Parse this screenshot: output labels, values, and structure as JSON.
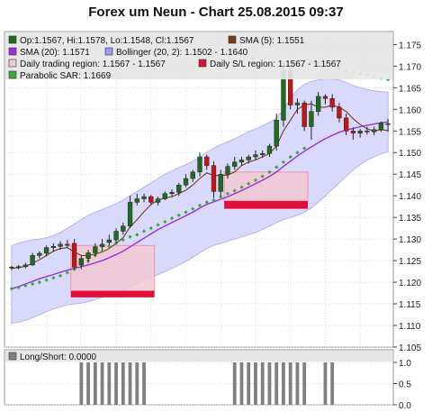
{
  "chart_data": {
    "type": "candlestick",
    "title": "Forex um Neun - Chart 25.08.2015 09:37",
    "main": {
      "ylim": [
        1.105,
        1.178
      ],
      "yticks": [
        "1.105",
        "1.110",
        "1.115",
        "1.120",
        "1.125",
        "1.130",
        "1.135",
        "1.140",
        "1.145",
        "1.150",
        "1.155",
        "1.160",
        "1.165",
        "1.170",
        "1.175"
      ],
      "grid": true,
      "legend_position": "top-left",
      "legend": [
        {
          "text": "Op:1.1567, Hi:1.1578, Lo:1.1548, Cl:1.1567",
          "color": "#1d6d1d",
          "icon": "square"
        },
        {
          "text": "SMA (5): 1.1551",
          "color": "#7a3b1a",
          "icon": "square"
        },
        {
          "text": "Daily trading region: 1.1567 - 1.1567",
          "color": "#f3c9d4",
          "icon": "square"
        },
        {
          "text": "Daily S/L region: 1.1567 - 1.1567",
          "color": "#e0103a",
          "icon": "square"
        },
        {
          "text": "SMA (20): 1.1571",
          "color": "#9b2fd6",
          "icon": "square"
        },
        {
          "text": "Bollinger (20, 2): 1.1502 - 1.1640",
          "color": "#9b9bf0",
          "icon": "square"
        },
        {
          "text": "Parabolic SAR: 1.1669",
          "color": "#3aa83a",
          "icon": "square"
        }
      ],
      "candles": [
        [
          1.1233,
          1.1238,
          1.1228,
          1.1235
        ],
        [
          1.1235,
          1.124,
          1.123,
          1.1236
        ],
        [
          1.1236,
          1.1245,
          1.1232,
          1.124
        ],
        [
          1.124,
          1.1268,
          1.1238,
          1.1262
        ],
        [
          1.1262,
          1.1272,
          1.1255,
          1.1267
        ],
        [
          1.1267,
          1.1285,
          1.126,
          1.128
        ],
        [
          1.128,
          1.129,
          1.127,
          1.1283
        ],
        [
          1.1283,
          1.1295,
          1.1275,
          1.1288
        ],
        [
          1.1288,
          1.1298,
          1.128,
          1.1285
        ],
        [
          1.129,
          1.13,
          1.123,
          1.1235
        ],
        [
          1.124,
          1.1262,
          1.123,
          1.1255
        ],
        [
          1.1255,
          1.1275,
          1.1245,
          1.1268
        ],
        [
          1.1268,
          1.129,
          1.126,
          1.1282
        ],
        [
          1.1282,
          1.13,
          1.1275,
          1.1288
        ],
        [
          1.1292,
          1.131,
          1.1285,
          1.1298
        ],
        [
          1.1298,
          1.1325,
          1.129,
          1.1318
        ],
        [
          1.1318,
          1.1338,
          1.131,
          1.133
        ],
        [
          1.133,
          1.14,
          1.1325,
          1.1385
        ],
        [
          1.1385,
          1.1405,
          1.1378,
          1.1393
        ],
        [
          1.1393,
          1.1405,
          1.1385,
          1.1398
        ],
        [
          1.1398,
          1.1402,
          1.1378,
          1.1385
        ],
        [
          1.1385,
          1.1398,
          1.1378,
          1.1393
        ],
        [
          1.1393,
          1.141,
          1.139,
          1.1405
        ],
        [
          1.1405,
          1.1415,
          1.1398,
          1.1408
        ],
        [
          1.1408,
          1.143,
          1.14,
          1.1425
        ],
        [
          1.1425,
          1.145,
          1.142,
          1.144
        ],
        [
          1.144,
          1.146,
          1.1432,
          1.1455
        ],
        [
          1.1455,
          1.15,
          1.1445,
          1.149
        ],
        [
          1.149,
          1.1495,
          1.146,
          1.147
        ],
        [
          1.147,
          1.148,
          1.1395,
          1.141
        ],
        [
          1.141,
          1.146,
          1.14,
          1.145
        ],
        [
          1.145,
          1.1475,
          1.144,
          1.1468
        ],
        [
          1.1468,
          1.149,
          1.146,
          1.1478
        ],
        [
          1.1478,
          1.149,
          1.147,
          1.1483
        ],
        [
          1.1483,
          1.1495,
          1.1475,
          1.149
        ],
        [
          1.149,
          1.1505,
          1.1482,
          1.1495
        ],
        [
          1.1495,
          1.1505,
          1.1488,
          1.1498
        ],
        [
          1.1498,
          1.152,
          1.149,
          1.1515
        ],
        [
          1.1515,
          1.159,
          1.1505,
          1.1575
        ],
        [
          1.1575,
          1.171,
          1.156,
          1.169
        ],
        [
          1.169,
          1.17,
          1.16,
          1.161
        ],
        [
          1.161,
          1.1625,
          1.159,
          1.1615
        ],
        [
          1.1615,
          1.162,
          1.155,
          1.156
        ],
        [
          1.156,
          1.162,
          1.153,
          1.1595
        ],
        [
          1.1595,
          1.164,
          1.1585,
          1.163
        ],
        [
          1.163,
          1.1635,
          1.1612,
          1.1625
        ],
        [
          1.1625,
          1.1635,
          1.1595,
          1.1605
        ],
        [
          1.1605,
          1.1615,
          1.157,
          1.158
        ],
        [
          1.158,
          1.159,
          1.154,
          1.155
        ],
        [
          1.155,
          1.1558,
          1.153,
          1.1545
        ],
        [
          1.1545,
          1.1555,
          1.1535,
          1.155
        ],
        [
          1.155,
          1.156,
          1.1542,
          1.1548
        ],
        [
          1.1548,
          1.156,
          1.154,
          1.1553
        ],
        [
          1.1553,
          1.1572,
          1.1548,
          1.1568
        ],
        [
          1.1567,
          1.1578,
          1.1548,
          1.1567
        ]
      ],
      "sma5": [
        1.1232,
        1.1234,
        1.1237,
        1.1244,
        1.1252,
        1.1262,
        1.1272,
        1.1278,
        1.128,
        1.127,
        1.1262,
        1.1262,
        1.1265,
        1.127,
        1.1278,
        1.129,
        1.1303,
        1.1328,
        1.1345,
        1.1363,
        1.138,
        1.139,
        1.1395,
        1.1398,
        1.1405,
        1.1413,
        1.1425,
        1.144,
        1.1453,
        1.1447,
        1.1447,
        1.1448,
        1.1455,
        1.147,
        1.1478,
        1.1483,
        1.149,
        1.1498,
        1.1515,
        1.155,
        1.1575,
        1.16,
        1.161,
        1.1613,
        1.1605,
        1.1605,
        1.161,
        1.1605,
        1.1595,
        1.1578,
        1.1565,
        1.1555,
        1.155,
        1.1553,
        1.1551
      ],
      "sma20": [
        1.1185,
        1.119,
        1.1196,
        1.1202,
        1.1208,
        1.1213,
        1.1218,
        1.1223,
        1.1228,
        1.1232,
        1.1236,
        1.124,
        1.1245,
        1.125,
        1.1257,
        1.1264,
        1.1272,
        1.1282,
        1.1292,
        1.1302,
        1.1312,
        1.1322,
        1.133,
        1.1338,
        1.1346,
        1.1354,
        1.1362,
        1.1372,
        1.138,
        1.1386,
        1.1392,
        1.1398,
        1.1405,
        1.1412,
        1.142,
        1.1428,
        1.1436,
        1.1445,
        1.1455,
        1.1468,
        1.148,
        1.1492,
        1.1503,
        1.1513,
        1.1523,
        1.1532,
        1.154,
        1.1547,
        1.1552,
        1.1556,
        1.156,
        1.1563,
        1.1566,
        1.1569,
        1.1571
      ],
      "boll_upper": [
        1.1285,
        1.129,
        1.1295,
        1.1298,
        1.13,
        1.1303,
        1.1308,
        1.1315,
        1.1325,
        1.1335,
        1.1345,
        1.1355,
        1.1362,
        1.1368,
        1.1375,
        1.1382,
        1.139,
        1.14,
        1.141,
        1.142,
        1.143,
        1.144,
        1.145,
        1.1458,
        1.1465,
        1.1472,
        1.148,
        1.149,
        1.15,
        1.151,
        1.1518,
        1.1525,
        1.1532,
        1.154,
        1.1548,
        1.1555,
        1.1562,
        1.157,
        1.158,
        1.16,
        1.1625,
        1.1645,
        1.1658,
        1.1665,
        1.1668,
        1.167,
        1.167,
        1.1668,
        1.1662,
        1.1655,
        1.165,
        1.1646,
        1.1643,
        1.1641,
        1.164
      ],
      "boll_lower": [
        1.1105,
        1.1108,
        1.1112,
        1.1118,
        1.1125,
        1.1132,
        1.1138,
        1.1143,
        1.1148,
        1.115,
        1.1152,
        1.1155,
        1.116,
        1.1165,
        1.117,
        1.1175,
        1.118,
        1.119,
        1.1198,
        1.1205,
        1.1212,
        1.1218,
        1.1225,
        1.1232,
        1.124,
        1.1248,
        1.1258,
        1.1268,
        1.1278,
        1.1285,
        1.129,
        1.1295,
        1.13,
        1.1305,
        1.131,
        1.1315,
        1.1322,
        1.133,
        1.1338,
        1.1345,
        1.135,
        1.1355,
        1.1362,
        1.1372,
        1.1385,
        1.14,
        1.1415,
        1.143,
        1.1445,
        1.146,
        1.1472,
        1.1483,
        1.149,
        1.1497,
        1.1502
      ],
      "sar": [
        1.1185,
        1.1188,
        1.1192,
        1.1196,
        1.12,
        1.1205,
        1.121,
        1.1215,
        1.1222,
        1.123,
        1.124,
        1.125,
        1.1262,
        1.1272,
        1.1282,
        1.129,
        1.1298,
        1.1305,
        1.131,
        1.1318,
        1.1325,
        1.1333,
        1.134,
        1.1348,
        1.1355,
        1.1362,
        1.137,
        1.1378,
        1.1385,
        1.139,
        1.1398,
        1.1405,
        1.1412,
        1.142,
        1.1428,
        1.1436,
        1.1445,
        1.1455,
        1.1466,
        1.1478,
        1.149,
        1.15,
        1.151,
        1.1712,
        1.1708,
        1.1703,
        1.1699,
        1.1695,
        1.169,
        1.1686,
        1.1682,
        1.1679,
        1.1676,
        1.1672,
        1.1669
      ],
      "regions": [
        {
          "start": 9,
          "end": 20,
          "trade_top": 1.1285,
          "trade_bottom": 1.118,
          "sl_top": 1.118,
          "sl_bottom": 1.1165
        },
        {
          "start": 31,
          "end": 42,
          "trade_top": 1.1455,
          "trade_bottom": 1.1388,
          "sl_top": 1.1388,
          "sl_bottom": 1.137
        }
      ]
    },
    "sub": {
      "legend": [
        {
          "text": "Long/Short: 0.0000",
          "color": "#808080",
          "icon": "square"
        }
      ],
      "ylim": [
        0,
        1.0
      ],
      "yticks": [
        "0.0",
        "0.5",
        "1.0"
      ],
      "bars": [
        0,
        0,
        0,
        0,
        0,
        0,
        0,
        0,
        0,
        0,
        1,
        1,
        1,
        1,
        1,
        1,
        1,
        1,
        1,
        1,
        0,
        0,
        0,
        0,
        0,
        0,
        0,
        0,
        0,
        0,
        0,
        0,
        1,
        1,
        1,
        1,
        1,
        1,
        1,
        1,
        1,
        1,
        1,
        0,
        0,
        1,
        1,
        0,
        0,
        0,
        0,
        0,
        0,
        0,
        0
      ]
    }
  }
}
